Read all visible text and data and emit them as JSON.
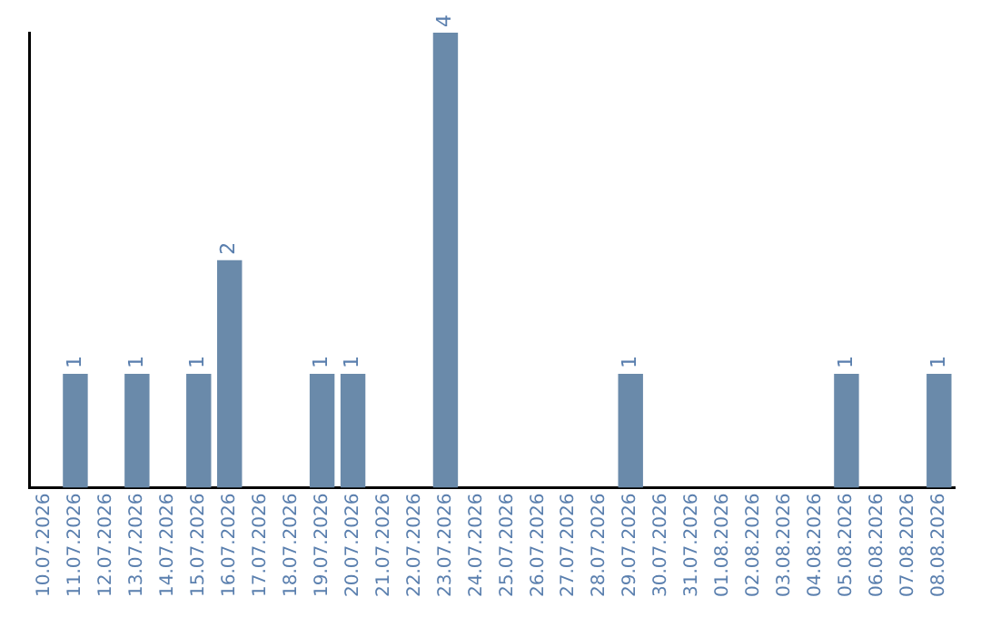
{
  "chart_data": {
    "type": "bar",
    "categories": [
      "10.07.2026",
      "11.07.2026",
      "12.07.2026",
      "13.07.2026",
      "14.07.2026",
      "15.07.2026",
      "16.07.2026",
      "17.07.2026",
      "18.07.2026",
      "19.07.2026",
      "20.07.2026",
      "21.07.2026",
      "22.07.2026",
      "23.07.2026",
      "24.07.2026",
      "25.07.2026",
      "26.07.2026",
      "27.07.2026",
      "28.07.2026",
      "29.07.2026",
      "30.07.2026",
      "31.07.2026",
      "01.08.2026",
      "02.08.2026",
      "03.08.2026",
      "04.08.2026",
      "05.08.2026",
      "06.08.2026",
      "07.08.2026",
      "08.08.2026"
    ],
    "values": [
      0,
      1,
      0,
      1,
      0,
      1,
      2,
      0,
      0,
      1,
      1,
      0,
      0,
      4,
      0,
      0,
      0,
      0,
      0,
      1,
      0,
      0,
      0,
      0,
      0,
      0,
      1,
      0,
      0,
      1
    ],
    "value_labels": [
      null,
      "1",
      null,
      "1",
      null,
      "1",
      "2",
      null,
      null,
      "1",
      "1",
      null,
      null,
      "4",
      null,
      null,
      null,
      null,
      null,
      "1",
      null,
      null,
      null,
      null,
      null,
      null,
      "1",
      null,
      null,
      "1"
    ],
    "color": "#6a8aaa",
    "grid": false,
    "legend": false,
    "tick_labels": "x"
  }
}
